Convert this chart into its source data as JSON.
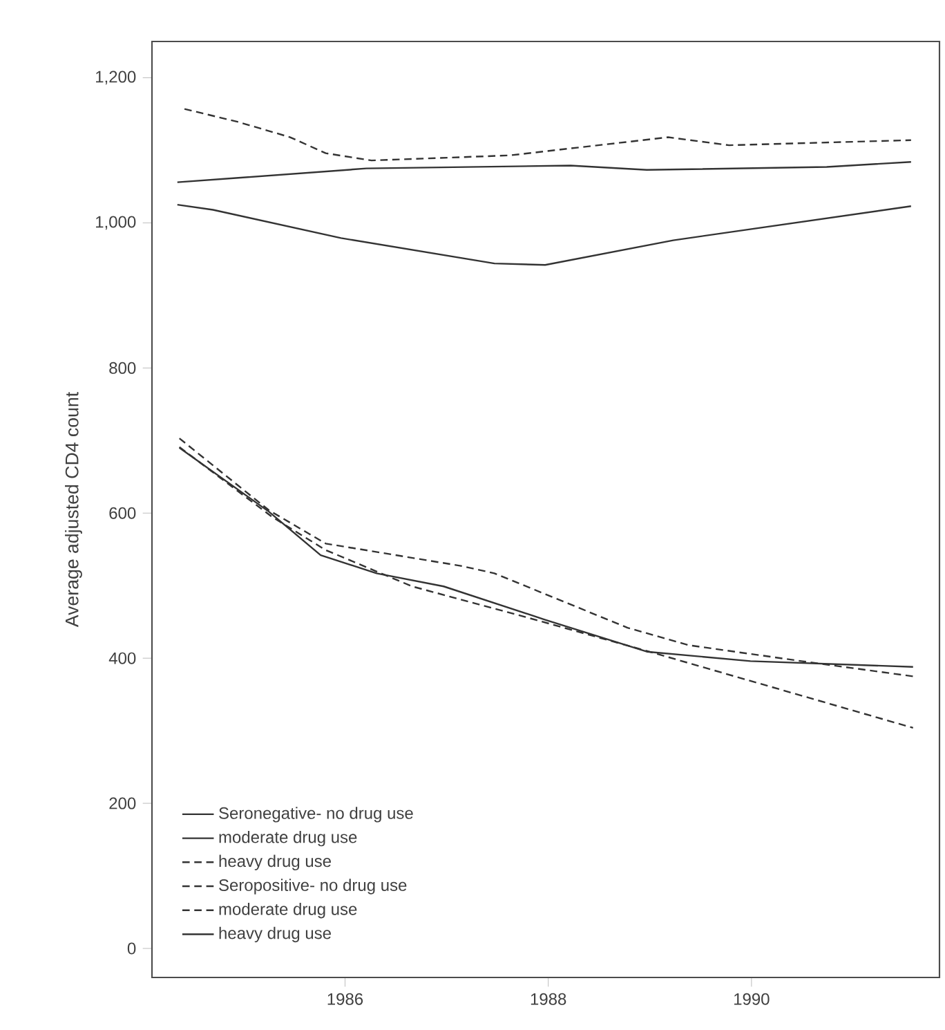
{
  "chart_data": {
    "type": "line",
    "ylabel": "Average adjusted CD4 count",
    "xlim": [
      1984.1,
      1991.85
    ],
    "ylim": [
      -40,
      1250
    ],
    "xticks": [
      1986,
      1988,
      1990
    ],
    "yticks": [
      0,
      200,
      400,
      600,
      800,
      {
        "value": 1000,
        "label": "1,000"
      },
      {
        "value": 1200,
        "label": "1,200"
      }
    ],
    "legend": "bottom left",
    "grid": false,
    "marker": "none",
    "series": [
      {
        "name": "Seronegative- no drug use",
        "color": "#333333",
        "line_style": "solid",
        "x": [
          1984.35,
          1984.7,
          1985.96,
          1987.47,
          1987.97,
          1989.23,
          1991.57
        ],
        "values": [
          1025,
          1018,
          979,
          944,
          942,
          976,
          1023
        ]
      },
      {
        "name": "moderate drug use",
        "color": "#333333",
        "line_style": "solid",
        "x": [
          1984.35,
          1984.95,
          1986.21,
          1988.22,
          1988.97,
          1990.74,
          1991.57
        ],
        "values": [
          1056,
          1062,
          1075,
          1079,
          1073,
          1077,
          1084
        ]
      },
      {
        "name": "heavy drug use",
        "color": "#333333",
        "line_style": "dashed",
        "x": [
          1984.42,
          1984.95,
          1985.46,
          1985.81,
          1986.26,
          1987.62,
          1989.18,
          1989.78,
          1991.57
        ],
        "values": [
          1157,
          1139,
          1118,
          1096,
          1086,
          1093,
          1118,
          1107,
          1114
        ]
      },
      {
        "name": "Seropositive- no drug use",
        "color": "#333333",
        "line_style": "dashed",
        "x": [
          1984.37,
          1985.28,
          1985.81,
          1986.66,
          1987.77,
          1988.97,
          1991.59
        ],
        "values": [
          691,
          595,
          549,
          499,
          457,
          410,
          304
        ]
      },
      {
        "name": "moderate drug use",
        "color": "#333333",
        "line_style": "dashed",
        "x": [
          1984.37,
          1985.25,
          1985.81,
          1987.15,
          1987.47,
          1988.78,
          1989.38,
          1990.49,
          1991.59
        ],
        "values": [
          703,
          604,
          558,
          527,
          517,
          442,
          418,
          396,
          375
        ]
      },
      {
        "name": "heavy drug use",
        "color": "#333333",
        "line_style": "solid",
        "x": [
          1984.37,
          1985.25,
          1985.76,
          1986.31,
          1986.97,
          1987.97,
          1988.97,
          1989.99,
          1991.59
        ],
        "values": [
          690,
          602,
          542,
          517,
          499,
          453,
          409,
          396,
          388
        ]
      }
    ]
  }
}
